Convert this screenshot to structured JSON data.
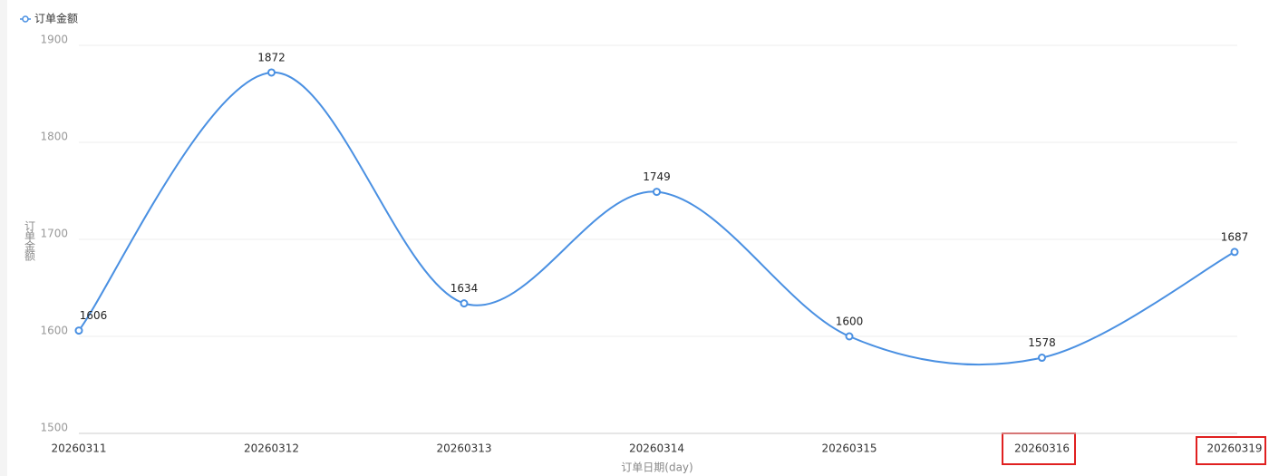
{
  "chart_data": {
    "type": "line",
    "legend": "top-left",
    "y_label": "订单金额",
    "x_label": "订单日期(day)",
    "categories": [
      "20260311",
      "20260312",
      "20260313",
      "20260314",
      "20260315",
      "20260316",
      "20260319"
    ],
    "series": [
      {
        "name": "订单金额",
        "color": "#4a90e2",
        "values": [
          1606,
          1872,
          1634,
          1749,
          1600,
          1578,
          1687
        ]
      }
    ],
    "ylim": [
      1500,
      1900
    ],
    "yticks": [
      1500,
      1600,
      1700,
      1800,
      1900
    ],
    "grid": true,
    "smooth": true
  }
}
